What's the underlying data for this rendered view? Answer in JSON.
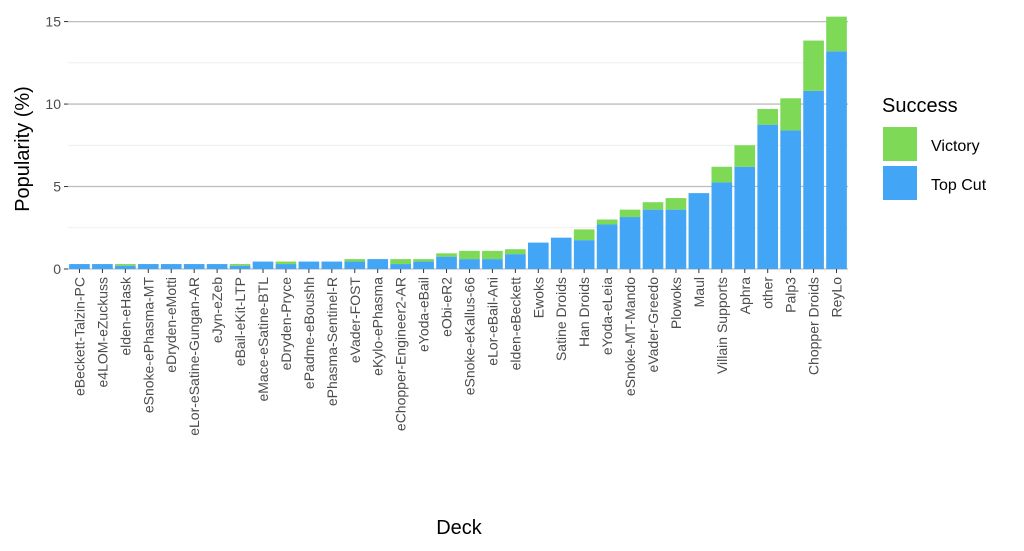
{
  "chart_data": {
    "type": "bar",
    "stacked": true,
    "xlabel": "Deck",
    "ylabel": "Popularity (%)",
    "ylim": [
      0,
      15.4
    ],
    "yticks": [
      0,
      5,
      10,
      15
    ],
    "grid": "horizontal major and minor",
    "legend": {
      "title": "Success",
      "placement": "right",
      "entries": [
        "Victory",
        "Top Cut"
      ]
    },
    "categories": [
      "eBeckett-Talzin-PC",
      "e4LOM-eZuckuss",
      "elden-eHask",
      "eSnoke-ePhasma-MT",
      "eDryden-eMotti",
      "eLor-eSatine-Gungan-AR",
      "eJyn-eZeb",
      "eBail-eKit-LTP",
      "eMace-eSatine-BTL",
      "eDryden-Pryce",
      "ePadme-eBoushh",
      "ePhasma-Sentinel-R",
      "eVader-FOST",
      "eKylo-ePhasma",
      "eChopper-Engineer2-AR",
      "eYoda-eBail",
      "eObi-eR2",
      "eSnoke-eKallus-66",
      "eLor-eBail-Ani",
      "elden-eBeckett",
      "Ewoks",
      "Satine Droids",
      "Han Droids",
      "eYoda-eLeia",
      "eSnoke-MT-Mando",
      "eVader-Greedo",
      "Plowoks",
      "Maul",
      "Villain Supports",
      "Aphra",
      "other",
      "Palp3",
      "Chopper Droids",
      "ReyLo"
    ],
    "series": [
      {
        "name": "Top Cut",
        "color": "#42a5f5",
        "values": [
          0.3,
          0.3,
          0.2,
          0.3,
          0.3,
          0.3,
          0.3,
          0.2,
          0.45,
          0.3,
          0.45,
          0.45,
          0.45,
          0.6,
          0.3,
          0.45,
          0.75,
          0.6,
          0.6,
          0.9,
          1.6,
          1.9,
          1.75,
          2.7,
          3.15,
          3.6,
          3.6,
          4.6,
          5.25,
          6.2,
          8.75,
          8.4,
          10.8,
          13.2
        ]
      },
      {
        "name": "Victory",
        "color": "#7ed957",
        "values": [
          0,
          0,
          0.1,
          0,
          0,
          0,
          0,
          0.1,
          0,
          0.15,
          0,
          0,
          0.15,
          0,
          0.3,
          0.15,
          0.2,
          0.5,
          0.5,
          0.3,
          0,
          0,
          0.65,
          0.3,
          0.45,
          0.45,
          0.7,
          0,
          0.95,
          1.3,
          0.95,
          1.95,
          3.05,
          2.1
        ]
      }
    ]
  }
}
